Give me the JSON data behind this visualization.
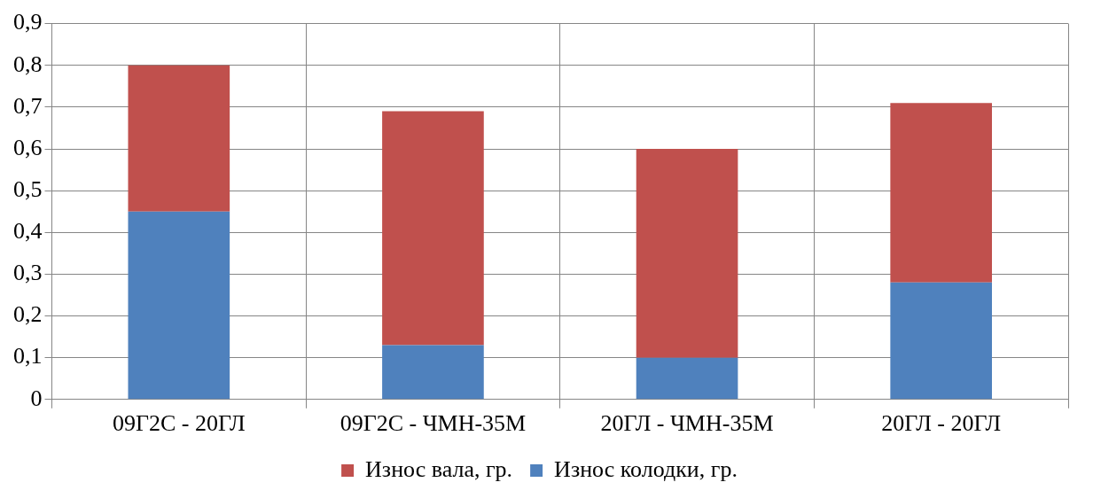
{
  "chart_data": {
    "type": "bar",
    "stacked": true,
    "categories": [
      "09Г2С - 20ГЛ",
      "09Г2С - ЧМН-35М",
      "20ГЛ - ЧМН-35М",
      "20ГЛ - 20ГЛ"
    ],
    "series": [
      {
        "name": "Износ колодки, гр.",
        "color": "#4f81bd",
        "values": [
          0.45,
          0.13,
          0.1,
          0.28
        ]
      },
      {
        "name": "Износ вала, гр.",
        "color": "#c0504d",
        "values": [
          0.35,
          0.56,
          0.5,
          0.43
        ]
      }
    ],
    "ylim": [
      0,
      0.9
    ],
    "yticks": [
      0,
      {
        "value": 0.1,
        "label": "0,1"
      },
      {
        "value": 0.2,
        "label": "0,2"
      },
      {
        "value": 0.3,
        "label": "0,3"
      },
      {
        "value": 0.4,
        "label": "0,4"
      },
      {
        "value": 0.5,
        "label": "0,5"
      },
      {
        "value": 0.6,
        "label": "0,6"
      },
      {
        "value": 0.7,
        "label": "0,7"
      },
      {
        "value": 0.8,
        "label": "0,8"
      },
      {
        "value": 0.9,
        "label": "0,9"
      }
    ],
    "grid": true,
    "legend": "bottom"
  }
}
